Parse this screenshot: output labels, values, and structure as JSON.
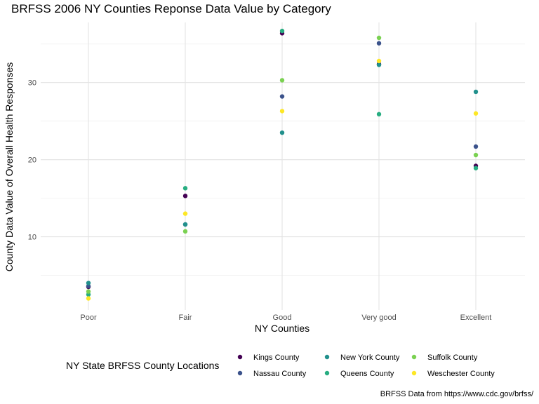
{
  "chart_data": {
    "type": "scatter",
    "title": "BRFSS 2006 NY Counties Reponse Data Value by Category",
    "xlabel": "NY Counties",
    "ylabel": "County Data Value of Overall Health Responses",
    "caption": "BRFSS Data from https://www.cdc.gov/brfss/",
    "categories": [
      "Poor",
      "Fair",
      "Good",
      "Very good",
      "Excellent"
    ],
    "y_ticks": [
      10,
      20,
      30
    ],
    "ylim": [
      0.5,
      37.8
    ],
    "grid": true,
    "legend": {
      "title": "NY State BRFSS County Locations",
      "placement": "bottom"
    },
    "series": [
      {
        "name": "Kings County",
        "color": "#440154",
        "values": [
          3.5,
          15.3,
          36.4,
          32.4,
          19.2
        ]
      },
      {
        "name": "Nassau County",
        "color": "#3B528B",
        "values": [
          3.6,
          11.6,
          28.2,
          35.1,
          21.7
        ]
      },
      {
        "name": "New York County",
        "color": "#21908C",
        "values": [
          4.0,
          11.6,
          23.5,
          32.3,
          28.8
        ]
      },
      {
        "name": "Queens County",
        "color": "#27AD81",
        "values": [
          2.5,
          16.3,
          36.7,
          25.9,
          18.9
        ]
      },
      {
        "name": "Suffolk County",
        "color": "#7AD151",
        "values": [
          2.9,
          10.7,
          30.3,
          35.8,
          20.6
        ]
      },
      {
        "name": "Weschester County",
        "color": "#FDE725",
        "values": [
          2.0,
          13.0,
          26.3,
          32.8,
          26.0
        ]
      }
    ]
  }
}
